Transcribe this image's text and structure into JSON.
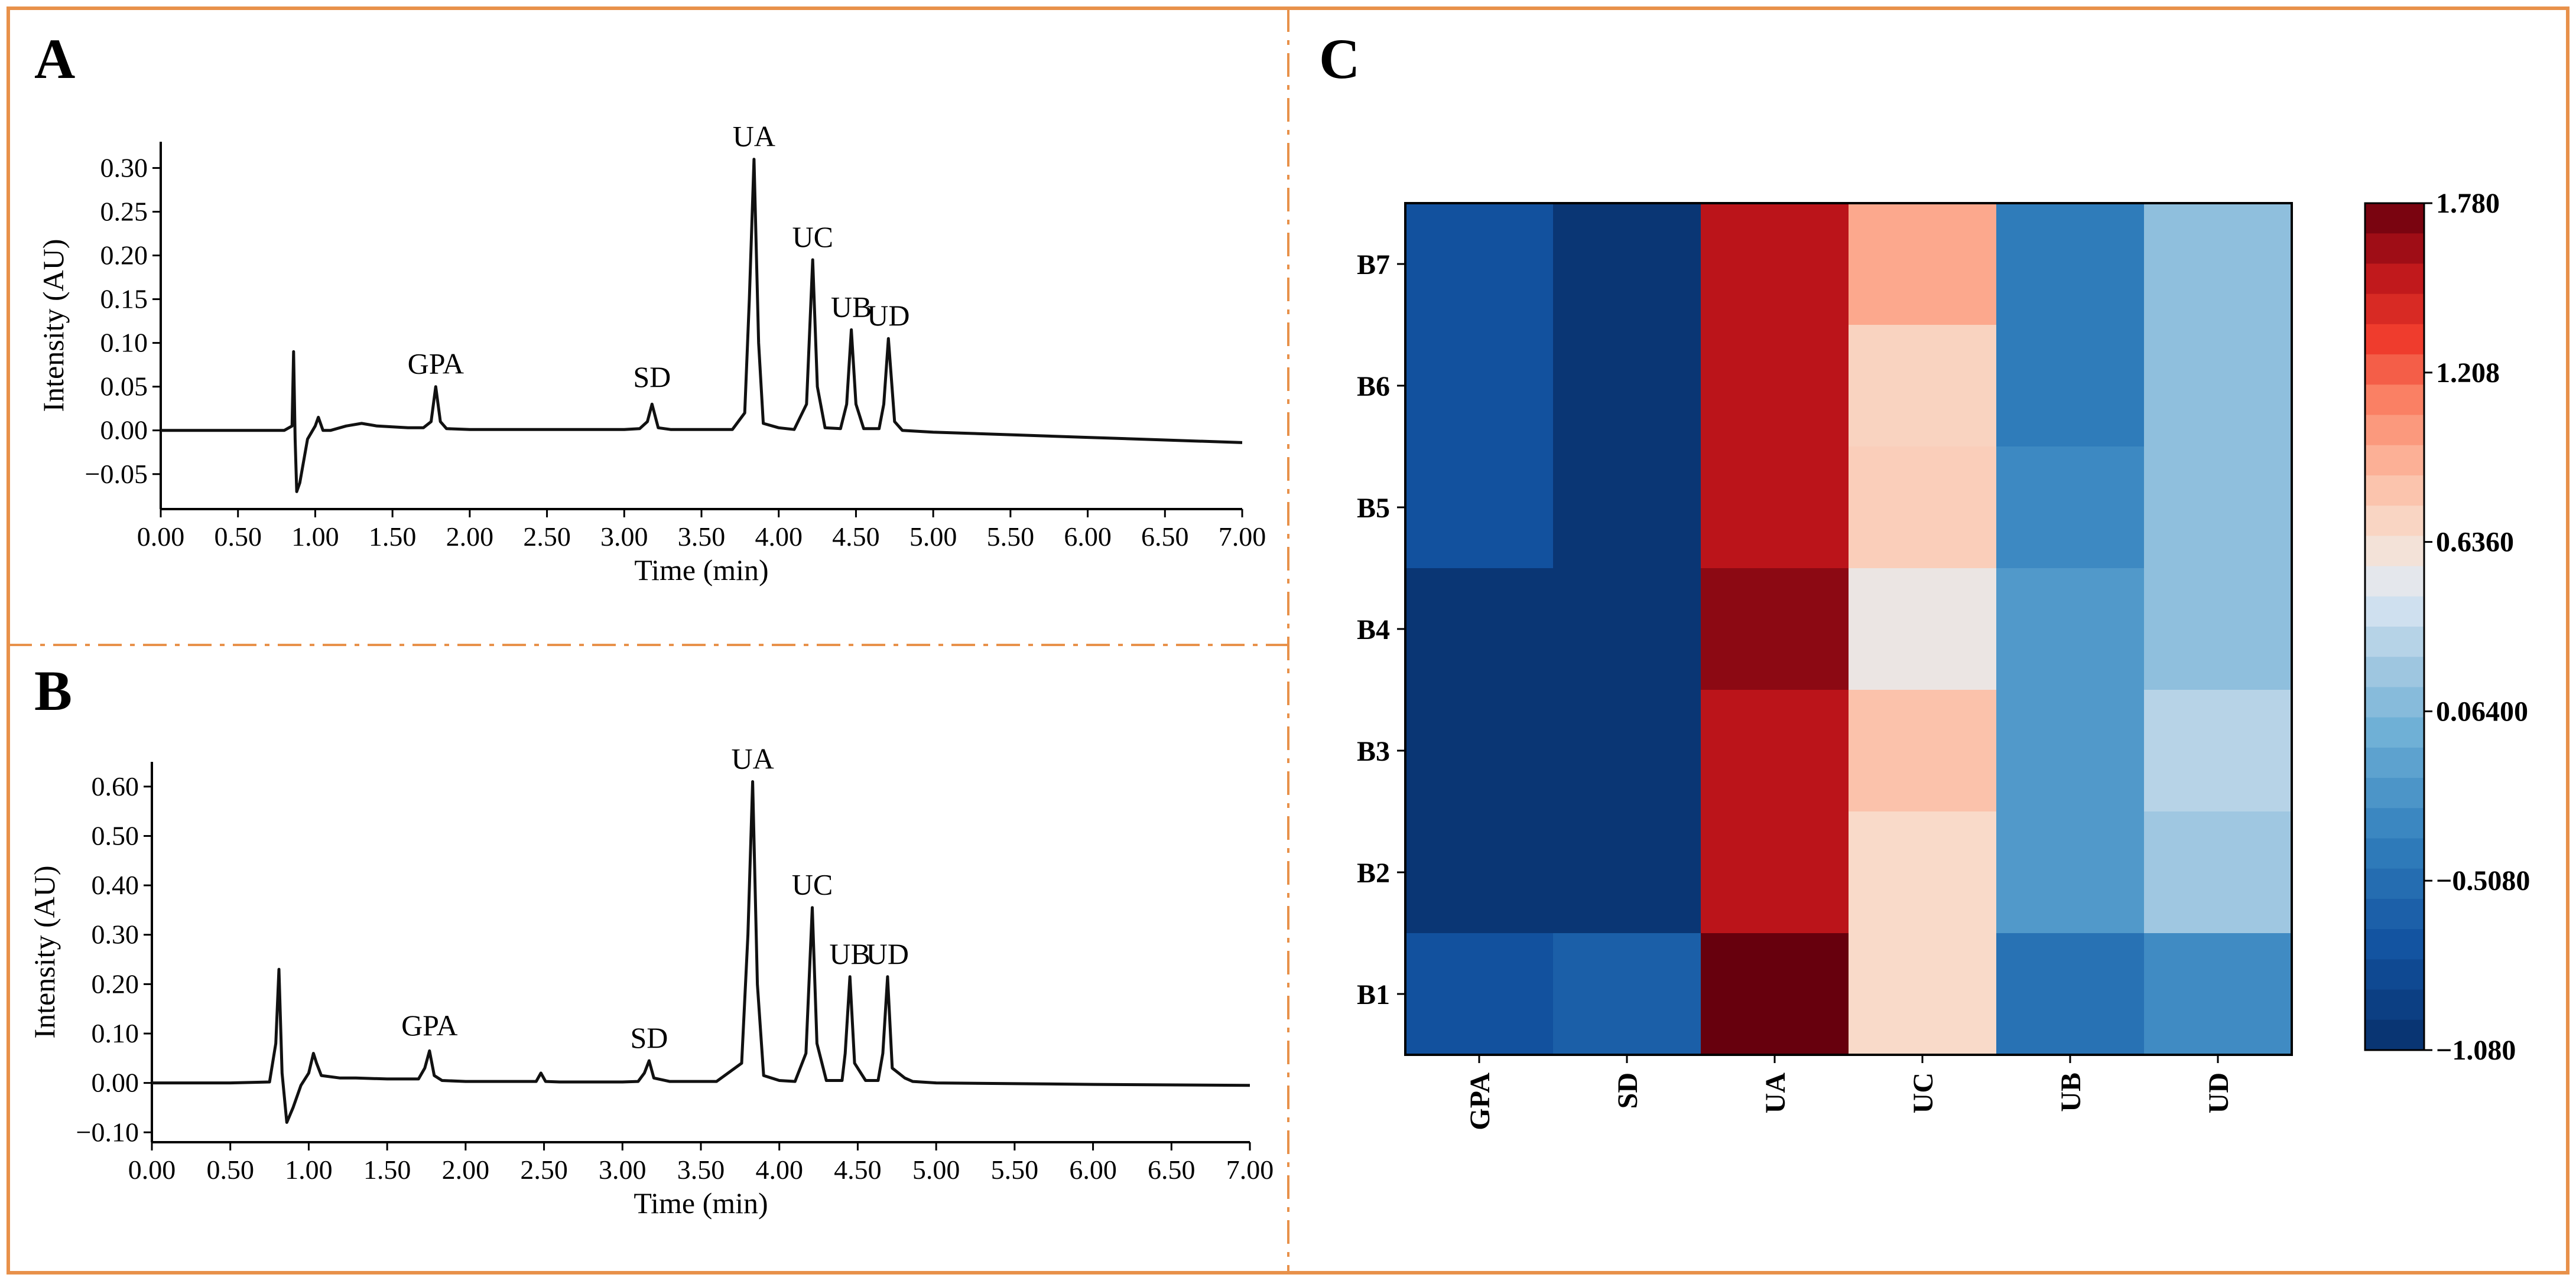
{
  "panels": {
    "a": "A",
    "b": "B",
    "c": "C"
  },
  "colors": {
    "frame": "#E8914A",
    "line": "#111111"
  },
  "chart_data": [
    {
      "id": "A",
      "type": "line",
      "xlabel": "Time (min)",
      "ylabel": "Intensity (AU)",
      "xlim": [
        0,
        7
      ],
      "ylim": [
        -0.09,
        0.33
      ],
      "xticks": [
        0,
        0.5,
        1,
        1.5,
        2,
        2.5,
        3,
        3.5,
        4,
        4.5,
        5,
        5.5,
        6,
        6.5,
        7
      ],
      "xtick_labels": [
        "0.00",
        "0.50",
        "1.00",
        "1.50",
        "2.00",
        "2.50",
        "3.00",
        "3.50",
        "4.00",
        "4.50",
        "5.00",
        "5.50",
        "6.00",
        "6.50",
        "7.00"
      ],
      "yticks": [
        -0.05,
        0,
        0.05,
        0.1,
        0.15,
        0.2,
        0.25,
        0.3
      ],
      "ytick_labels": [
        "−0.05",
        "0.00",
        "0.05",
        "0.10",
        "0.15",
        "0.20",
        "0.25",
        "0.30"
      ],
      "peaks": [
        {
          "label": "GPA",
          "t": 1.78,
          "h": 0.05
        },
        {
          "label": "SD",
          "t": 3.18,
          "h": 0.035
        },
        {
          "label": "UA",
          "t": 3.84,
          "h": 0.31
        },
        {
          "label": "UC",
          "t": 4.22,
          "h": 0.195
        },
        {
          "label": "UB",
          "t": 4.47,
          "h": 0.115
        },
        {
          "label": "UD",
          "t": 4.71,
          "h": 0.105
        }
      ],
      "series": {
        "x": [
          0,
          0.5,
          0.8,
          0.85,
          0.86,
          0.87,
          0.88,
          0.9,
          0.95,
          1.0,
          1.02,
          1.05,
          1.1,
          1.2,
          1.3,
          1.4,
          1.5,
          1.6,
          1.7,
          1.75,
          1.78,
          1.81,
          1.85,
          2.0,
          2.5,
          2.8,
          3.0,
          3.1,
          3.15,
          3.18,
          3.22,
          3.3,
          3.5,
          3.7,
          3.78,
          3.81,
          3.84,
          3.87,
          3.9,
          4.0,
          4.1,
          4.18,
          4.22,
          4.25,
          4.3,
          4.4,
          4.44,
          4.47,
          4.5,
          4.55,
          4.65,
          4.68,
          4.71,
          4.75,
          4.8,
          5.0,
          5.5,
          6.0,
          6.5,
          7.0
        ],
        "y": [
          0,
          0,
          0,
          0.005,
          0.09,
          -0.01,
          -0.07,
          -0.06,
          -0.01,
          0.005,
          0.015,
          0,
          0,
          0.005,
          0.008,
          0.005,
          0.004,
          0.003,
          0.003,
          0.01,
          0.05,
          0.01,
          0.002,
          0.001,
          0.001,
          0.001,
          0.001,
          0.002,
          0.01,
          0.03,
          0.003,
          0.001,
          0.001,
          0.001,
          0.02,
          0.15,
          0.31,
          0.1,
          0.008,
          0.003,
          0.001,
          0.03,
          0.195,
          0.05,
          0.003,
          0.002,
          0.03,
          0.115,
          0.03,
          0.002,
          0.002,
          0.03,
          0.105,
          0.01,
          0,
          -0.002,
          -0.005,
          -0.008,
          -0.011,
          -0.014
        ]
      }
    },
    {
      "id": "B",
      "type": "line",
      "xlabel": "Time (min)",
      "ylabel": "Intensity (AU)",
      "xlim": [
        0,
        7
      ],
      "ylim": [
        -0.12,
        0.65
      ],
      "xticks": [
        0,
        0.5,
        1,
        1.5,
        2,
        2.5,
        3,
        3.5,
        4,
        4.5,
        5,
        5.5,
        6,
        6.5,
        7
      ],
      "xtick_labels": [
        "0.00",
        "0.50",
        "1.00",
        "1.50",
        "2.00",
        "2.50",
        "3.00",
        "3.50",
        "4.00",
        "4.50",
        "5.00",
        "5.50",
        "6.00",
        "6.50",
        "7.00"
      ],
      "yticks": [
        -0.1,
        0,
        0.1,
        0.2,
        0.3,
        0.4,
        0.5,
        0.6
      ],
      "ytick_labels": [
        "−0.10",
        "0.00",
        "0.10",
        "0.20",
        "0.30",
        "0.40",
        "0.50",
        "0.60"
      ],
      "peaks": [
        {
          "label": "GPA",
          "t": 1.77,
          "h": 0.07
        },
        {
          "label": "SD",
          "t": 3.17,
          "h": 0.045
        },
        {
          "label": "UA",
          "t": 3.83,
          "h": 0.61
        },
        {
          "label": "UC",
          "t": 4.21,
          "h": 0.355
        },
        {
          "label": "UB",
          "t": 4.45,
          "h": 0.215
        },
        {
          "label": "UD",
          "t": 4.69,
          "h": 0.215
        }
      ],
      "series": {
        "x": [
          0,
          0.5,
          0.75,
          0.79,
          0.81,
          0.83,
          0.86,
          0.9,
          0.95,
          1.0,
          1.03,
          1.05,
          1.08,
          1.2,
          1.3,
          1.5,
          1.7,
          1.74,
          1.77,
          1.8,
          1.85,
          2.0,
          2.2,
          2.45,
          2.48,
          2.51,
          2.6,
          3.0,
          3.1,
          3.14,
          3.17,
          3.2,
          3.3,
          3.6,
          3.76,
          3.8,
          3.83,
          3.86,
          3.9,
          4.0,
          4.1,
          4.17,
          4.21,
          4.24,
          4.3,
          4.4,
          4.42,
          4.45,
          4.48,
          4.55,
          4.63,
          4.66,
          4.69,
          4.72,
          4.8,
          4.85,
          5.0,
          6.0,
          7.0
        ],
        "y": [
          0,
          0,
          0.002,
          0.08,
          0.23,
          0.02,
          -0.08,
          -0.05,
          -0.005,
          0.02,
          0.06,
          0.04,
          0.015,
          0.01,
          0.01,
          0.008,
          0.008,
          0.03,
          0.065,
          0.015,
          0.005,
          0.003,
          0.003,
          0.003,
          0.02,
          0.003,
          0.002,
          0.002,
          0.003,
          0.02,
          0.045,
          0.01,
          0.003,
          0.003,
          0.04,
          0.3,
          0.61,
          0.2,
          0.015,
          0.005,
          0.003,
          0.06,
          0.355,
          0.08,
          0.005,
          0.005,
          0.06,
          0.215,
          0.04,
          0.005,
          0.005,
          0.06,
          0.215,
          0.03,
          0.01,
          0.003,
          0,
          -0.003,
          -0.005
        ]
      }
    },
    {
      "id": "C",
      "type": "heatmap",
      "columns": [
        "GPA",
        "SD",
        "UA",
        "UC",
        "UB",
        "UD"
      ],
      "rows": [
        "B7",
        "B6",
        "B5",
        "B4",
        "B3",
        "B2",
        "B1"
      ],
      "vmin": -1.08,
      "vmax": 1.78,
      "values": [
        [
          -0.75,
          -1.02,
          1.55,
          0.95,
          -0.4,
          0.13
        ],
        [
          -0.75,
          -1.02,
          1.55,
          0.72,
          -0.4,
          0.13
        ],
        [
          -0.75,
          -1.02,
          1.55,
          0.75,
          -0.3,
          0.13
        ],
        [
          -1.02,
          -1.02,
          1.68,
          0.55,
          -0.18,
          0.13
        ],
        [
          -1.02,
          -1.02,
          1.55,
          0.82,
          -0.18,
          0.3
        ],
        [
          -1.02,
          -1.02,
          1.55,
          0.68,
          -0.18,
          0.2
        ],
        [
          -0.75,
          -0.63,
          1.78,
          0.68,
          -0.48,
          -0.28
        ]
      ],
      "colorbar_ticks": [
        1.78,
        1.208,
        0.636,
        0.064,
        -0.508,
        -1.08
      ],
      "colorbar_labels": [
        "1.780",
        "1.208",
        "0.6360",
        "0.06400",
        "−0.5080",
        "−1.080"
      ]
    }
  ]
}
